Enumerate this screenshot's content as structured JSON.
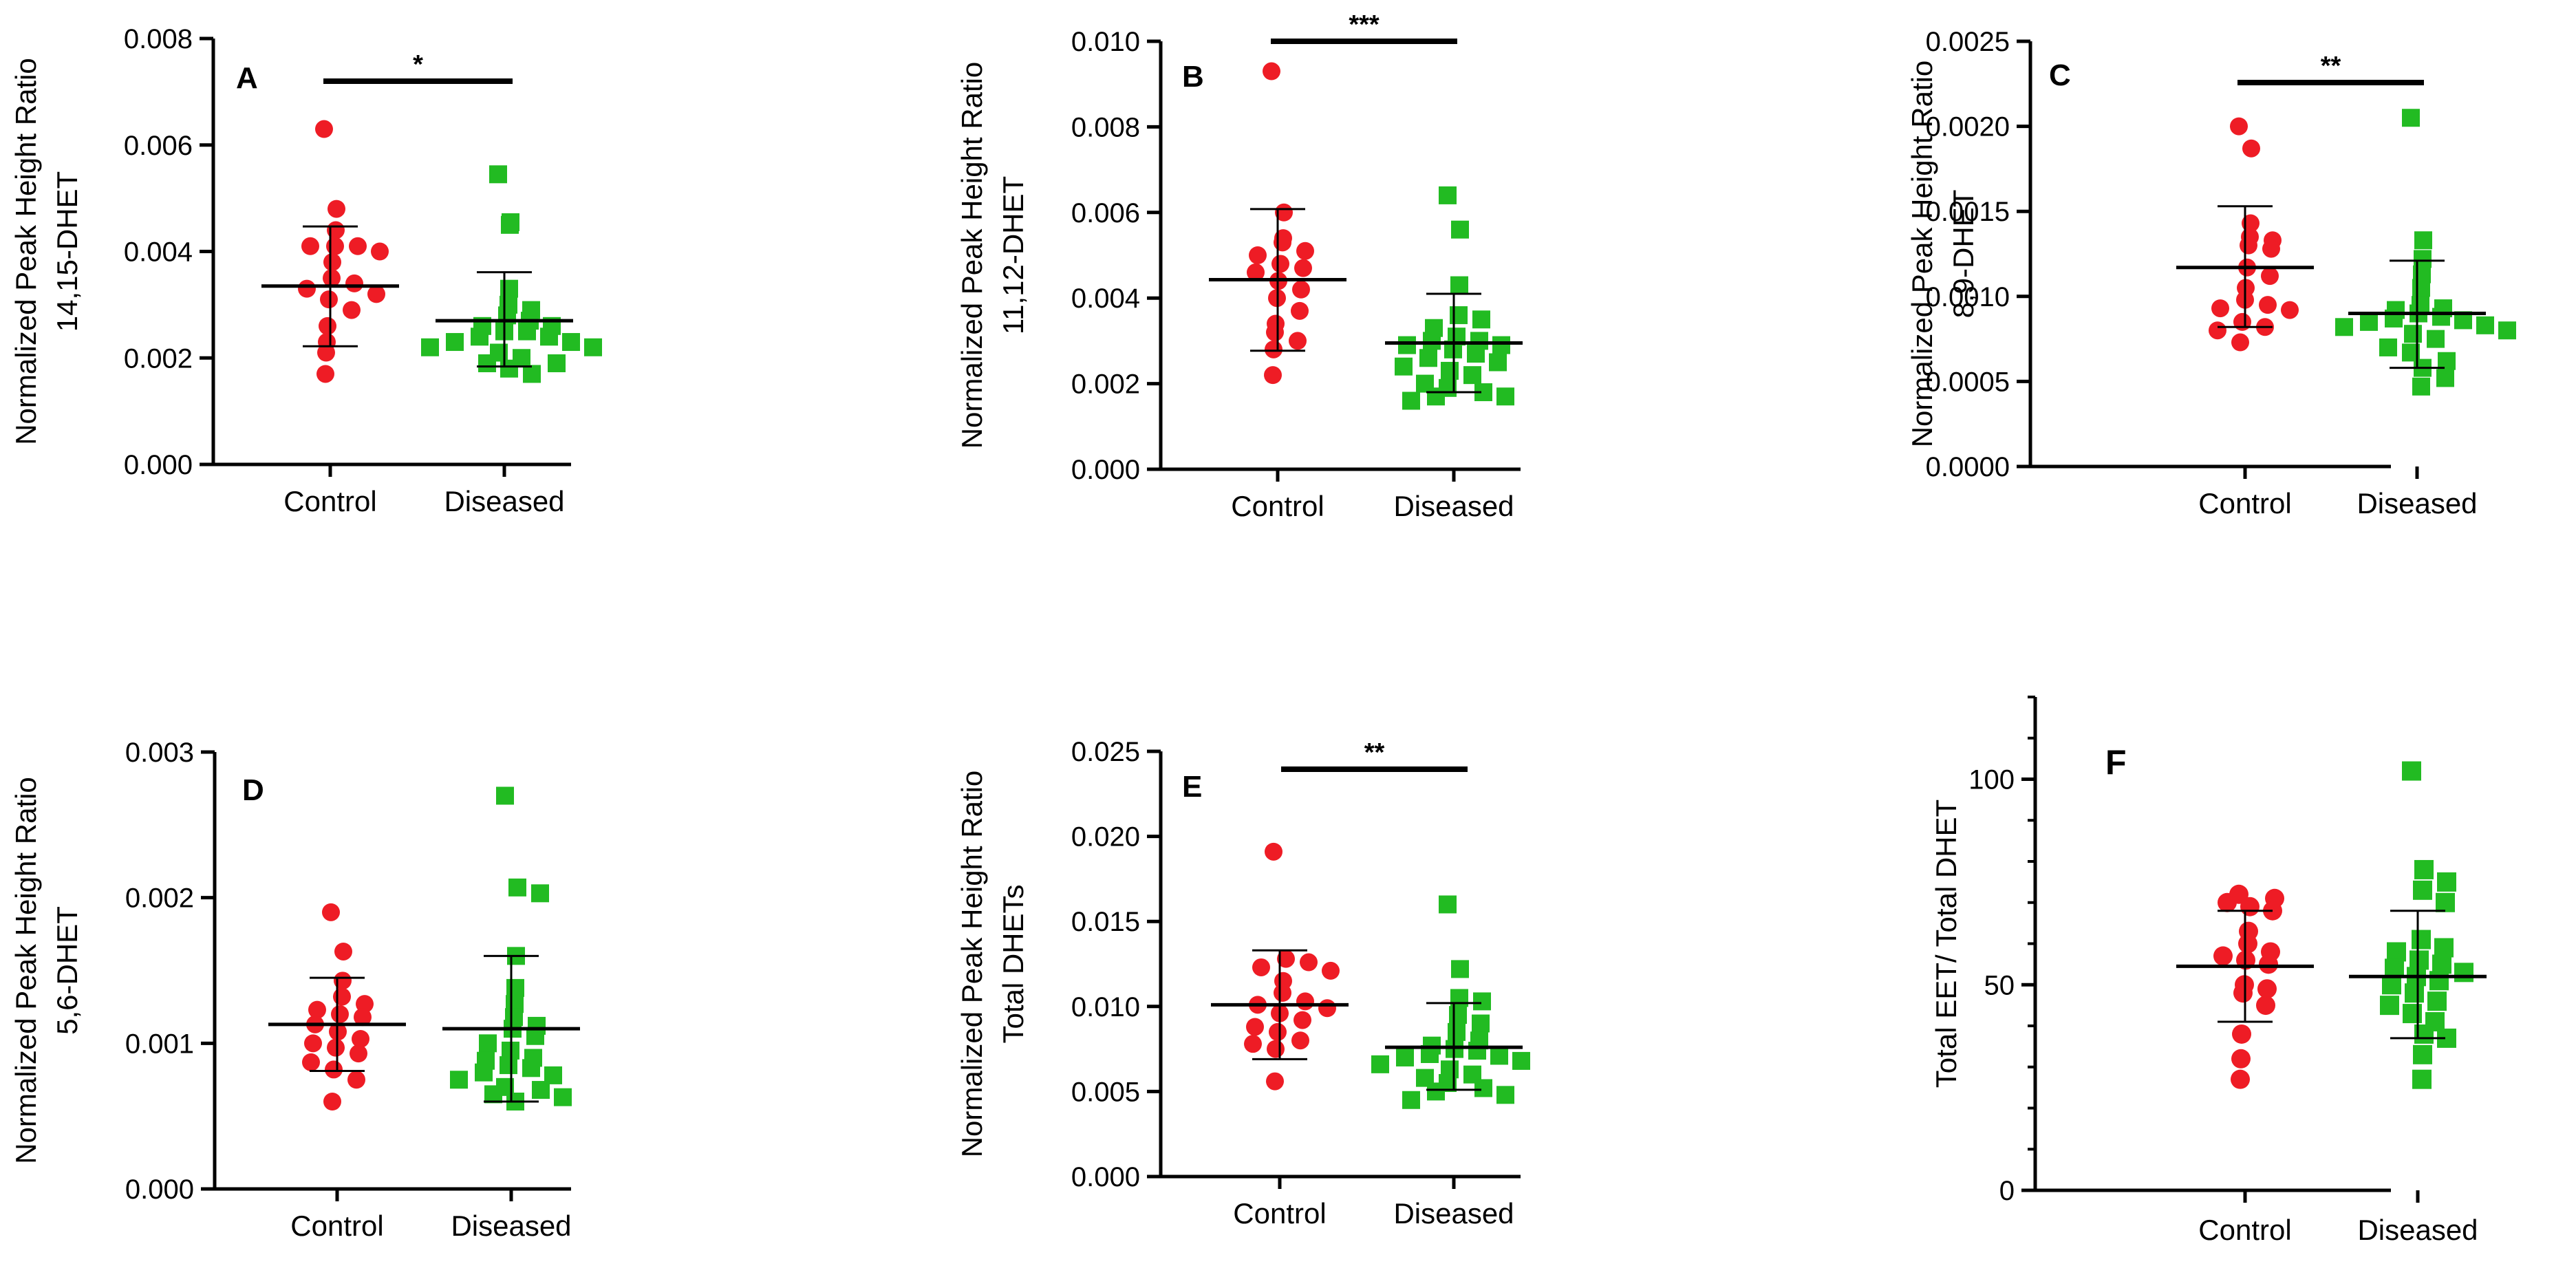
{
  "colors": {
    "control": "#ee1c25",
    "diseased": "#22bb22",
    "ink": "#000000"
  },
  "chart_data": [
    {
      "type": "scatter",
      "panel": "A",
      "ylabel_lines": [
        "Normalized Peak Height Ratio",
        "14,15-DHET"
      ],
      "ylim": [
        0,
        0.008
      ],
      "yticks": [
        0,
        0.002,
        0.004,
        0.006,
        0.008
      ],
      "ytick_labels": [
        "0.000",
        "0.002",
        "0.004",
        "0.006",
        "0.008"
      ],
      "categories": [
        "Control",
        "Diseased"
      ],
      "significance": "*",
      "series": [
        {
          "name": "Control",
          "marker": "circle",
          "values": [
            0.0063,
            0.0048,
            0.0044,
            0.0041,
            0.0041,
            0.0041,
            0.004,
            0.0038,
            0.0035,
            0.0034,
            0.0033,
            0.0032,
            0.0031,
            0.0029,
            0.0026,
            0.0023,
            0.0021,
            0.0017
          ],
          "mean": 0.00335,
          "sd_low": 0.00222,
          "sd_high": 0.00447
        },
        {
          "name": "Diseased",
          "marker": "square",
          "values": [
            0.00545,
            0.00455,
            0.0045,
            0.0033,
            0.003,
            0.0029,
            0.0028,
            0.0027,
            0.0026,
            0.0026,
            0.0025,
            0.0025,
            0.0024,
            0.0024,
            0.0023,
            0.0023,
            0.0022,
            0.0022,
            0.0021,
            0.002,
            0.0019,
            0.0019,
            0.0018,
            0.0017
          ],
          "mean": 0.0027,
          "sd_low": 0.00184,
          "sd_high": 0.00361
        }
      ]
    },
    {
      "type": "scatter",
      "panel": "B",
      "ylabel_lines": [
        "Normalized Peak Height Ratio",
        "11,12-DHET"
      ],
      "ylim": [
        0,
        0.01
      ],
      "yticks": [
        0,
        0.002,
        0.004,
        0.006,
        0.008,
        0.01
      ],
      "ytick_labels": [
        "0.000",
        "0.002",
        "0.004",
        "0.006",
        "0.008",
        "0.010"
      ],
      "categories": [
        "Control",
        "Diseased"
      ],
      "significance": "***",
      "series": [
        {
          "name": "Control",
          "marker": "circle",
          "values": [
            0.0093,
            0.006,
            0.0054,
            0.0053,
            0.0051,
            0.005,
            0.0048,
            0.0047,
            0.0046,
            0.0044,
            0.0042,
            0.004,
            0.0037,
            0.0034,
            0.0032,
            0.003,
            0.0028,
            0.0022
          ],
          "mean": 0.00443,
          "sd_low": 0.00277,
          "sd_high": 0.00608
        },
        {
          "name": "Diseased",
          "marker": "square",
          "values": [
            0.0064,
            0.0056,
            0.0043,
            0.0036,
            0.0035,
            0.0033,
            0.0031,
            0.003,
            0.003,
            0.0029,
            0.0029,
            0.0028,
            0.0027,
            0.0026,
            0.0025,
            0.0024,
            0.0023,
            0.0022,
            0.002,
            0.0019,
            0.0018,
            0.0017,
            0.0017,
            0.0016
          ],
          "mean": 0.00295,
          "sd_low": 0.0018,
          "sd_high": 0.0041
        }
      ]
    },
    {
      "type": "scatter",
      "panel": "C",
      "ylabel_lines": [
        "Normalized Peak Height Ratio",
        "8,9-DHET"
      ],
      "ylim": [
        0,
        0.0025
      ],
      "yticks": [
        0,
        0.0005,
        0.001,
        0.0015,
        0.002,
        0.0025
      ],
      "ytick_labels": [
        "0.0000",
        "0.0005",
        "0.0010",
        "0.0015",
        "0.0020",
        "0.0025"
      ],
      "categories": [
        "Control",
        "Diseased"
      ],
      "significance": "**",
      "series": [
        {
          "name": "Control",
          "marker": "circle",
          "values": [
            0.002,
            0.00187,
            0.00143,
            0.00135,
            0.00133,
            0.0013,
            0.00128,
            0.00117,
            0.00112,
            0.00105,
            0.00098,
            0.00095,
            0.00093,
            0.00092,
            0.00085,
            0.00082,
            0.0008,
            0.00073
          ],
          "mean": 0.00117,
          "sd_low": 0.00082,
          "sd_high": 0.00153
        },
        {
          "name": "Diseased",
          "marker": "square",
          "values": [
            0.00205,
            0.00133,
            0.00122,
            0.00113,
            0.00105,
            0.00095,
            0.00093,
            0.00092,
            0.0009,
            0.00088,
            0.00087,
            0.00086,
            0.00085,
            0.00083,
            0.00082,
            0.0008,
            0.00078,
            0.00075,
            0.0007,
            0.00067,
            0.00062,
            0.00058,
            0.00052,
            0.00047
          ],
          "mean": 0.0009,
          "sd_low": 0.00058,
          "sd_high": 0.00121
        }
      ]
    },
    {
      "type": "scatter",
      "panel": "D",
      "ylabel_lines": [
        "Normalized Peak Height Ratio",
        "5,6-DHET"
      ],
      "ylim": [
        0,
        0.003
      ],
      "yticks": [
        0,
        0.001,
        0.002,
        0.003
      ],
      "ytick_labels": [
        "0.000",
        "0.001",
        "0.002",
        "0.003"
      ],
      "categories": [
        "Control",
        "Diseased"
      ],
      "significance": "",
      "series": [
        {
          "name": "Control",
          "marker": "circle",
          "values": [
            0.0019,
            0.00163,
            0.00143,
            0.00132,
            0.00127,
            0.00123,
            0.0012,
            0.00118,
            0.00113,
            0.00108,
            0.00103,
            0.001,
            0.00097,
            0.00093,
            0.00087,
            0.00082,
            0.00075,
            0.0006
          ],
          "mean": 0.00113,
          "sd_low": 0.00081,
          "sd_high": 0.00145
        },
        {
          "name": "Diseased",
          "marker": "square",
          "values": [
            0.0027,
            0.00207,
            0.00203,
            0.0016,
            0.00138,
            0.00127,
            0.00118,
            0.00112,
            0.0011,
            0.00105,
            0.001,
            0.00095,
            0.0009,
            0.00088,
            0.00085,
            0.00083,
            0.0008,
            0.00078,
            0.00075,
            0.0007,
            0.00068,
            0.00065,
            0.00063,
            0.0006
          ],
          "mean": 0.0011,
          "sd_low": 0.0006,
          "sd_high": 0.0016
        }
      ]
    },
    {
      "type": "scatter",
      "panel": "E",
      "ylabel_lines": [
        "Normalized Peak Height Ratio",
        "Total  DHETs"
      ],
      "ylim": [
        0,
        0.025
      ],
      "yticks": [
        0,
        0.005,
        0.01,
        0.015,
        0.02,
        0.025
      ],
      "ytick_labels": [
        "0.000",
        "0.005",
        "0.010",
        "0.015",
        "0.020",
        "0.025"
      ],
      "categories": [
        "Control",
        "Diseased"
      ],
      "significance": "**",
      "series": [
        {
          "name": "Control",
          "marker": "circle",
          "values": [
            0.0191,
            0.0128,
            0.0126,
            0.0123,
            0.0121,
            0.0115,
            0.0108,
            0.0103,
            0.0101,
            0.0099,
            0.0096,
            0.0092,
            0.0088,
            0.0085,
            0.008,
            0.0078,
            0.0075,
            0.0056
          ],
          "mean": 0.0101,
          "sd_low": 0.0069,
          "sd_high": 0.0133
        },
        {
          "name": "Diseased",
          "marker": "square",
          "values": [
            0.016,
            0.0122,
            0.0105,
            0.0103,
            0.0095,
            0.009,
            0.0085,
            0.008,
            0.0077,
            0.0075,
            0.0074,
            0.0072,
            0.0071,
            0.007,
            0.0068,
            0.0066,
            0.0063,
            0.006,
            0.0058,
            0.0055,
            0.0052,
            0.005,
            0.0048,
            0.0045
          ],
          "mean": 0.0076,
          "sd_low": 0.0051,
          "sd_high": 0.0102
        }
      ]
    },
    {
      "type": "scatter",
      "panel": "F",
      "ylabel_lines": [
        "Total  EET/ Total DHET"
      ],
      "ylim": [
        0,
        120
      ],
      "yticks": [
        0,
        50,
        100
      ],
      "ytick_labels": [
        "0",
        "50",
        "100"
      ],
      "categories": [
        "Control",
        "Diseased"
      ],
      "significance": "",
      "series": [
        {
          "name": "Control",
          "marker": "circle",
          "values": [
            72,
            71,
            70,
            69,
            68,
            63,
            60,
            58,
            57,
            56,
            55,
            50,
            49,
            48,
            45,
            38,
            32,
            27
          ],
          "mean": 54.5,
          "sd_low": 41,
          "sd_high": 68
        },
        {
          "name": "Diseased",
          "marker": "square",
          "values": [
            102,
            78,
            75,
            73,
            70,
            61,
            59,
            58,
            56,
            55,
            54,
            53,
            52,
            51,
            50,
            48,
            46,
            45,
            43,
            41,
            38,
            37,
            33,
            27
          ],
          "mean": 52,
          "sd_low": 37,
          "sd_high": 68
        }
      ]
    }
  ]
}
